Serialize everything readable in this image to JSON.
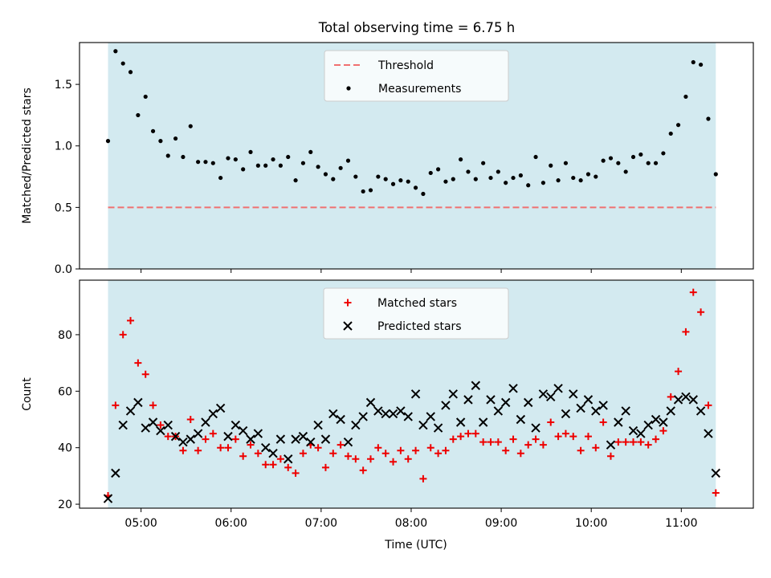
{
  "title": "Total observing time = 6.75 h",
  "colors": {
    "observing_band": "#d3eaf0",
    "threshold": "#f07070",
    "measurements": "#000000",
    "matched": "#ee0000",
    "predicted": "#000000"
  },
  "chart_data": [
    {
      "type": "scatter",
      "ylabel": "Matched/Predicted stars",
      "xlim": [
        "04:19",
        "11:48"
      ],
      "ylim": [
        0,
        1.84
      ],
      "yticks": [
        0.0,
        0.5,
        1.0,
        1.5
      ],
      "ytick_labels": [
        "0.0",
        "0.5",
        "1.0",
        "1.5"
      ],
      "xticks": [
        "05:00",
        "06:00",
        "07:00",
        "08:00",
        "09:00",
        "10:00",
        "11:00"
      ],
      "observing_span": [
        "04:38",
        "11:23"
      ],
      "legend": {
        "placement": "upper-center",
        "entries": [
          "Threshold",
          "Measurements"
        ]
      },
      "threshold": {
        "name": "Threshold",
        "value": 0.5,
        "x": [
          "04:38",
          "11:23"
        ]
      },
      "series": [
        {
          "name": "Measurements",
          "marker": "dot",
          "x": [
            "04:38",
            "04:43",
            "04:48",
            "04:53",
            "04:58",
            "05:03",
            "05:08",
            "05:13",
            "05:18",
            "05:23",
            "05:28",
            "05:33",
            "05:38",
            "05:43",
            "05:48",
            "05:53",
            "05:58",
            "06:03",
            "06:08",
            "06:13",
            "06:18",
            "06:23",
            "06:28",
            "06:33",
            "06:38",
            "06:43",
            "06:48",
            "06:53",
            "06:58",
            "07:03",
            "07:08",
            "07:13",
            "07:18",
            "07:23",
            "07:28",
            "07:33",
            "07:38",
            "07:43",
            "07:48",
            "07:53",
            "07:58",
            "08:03",
            "08:08",
            "08:13",
            "08:18",
            "08:23",
            "08:28",
            "08:33",
            "08:38",
            "08:43",
            "08:48",
            "08:53",
            "08:58",
            "09:03",
            "09:08",
            "09:13",
            "09:18",
            "09:23",
            "09:28",
            "09:33",
            "09:38",
            "09:43",
            "09:48",
            "09:53",
            "09:58",
            "10:03",
            "10:08",
            "10:13",
            "10:18",
            "10:23",
            "10:28",
            "10:33",
            "10:38",
            "10:43",
            "10:48",
            "10:53",
            "10:58",
            "11:03",
            "11:08",
            "11:13",
            "11:18",
            "11:23"
          ],
          "y": [
            1.04,
            1.77,
            1.67,
            1.6,
            1.25,
            1.4,
            1.12,
            1.04,
            0.92,
            1.06,
            0.91,
            1.16,
            0.87,
            0.87,
            0.86,
            0.74,
            0.9,
            0.89,
            0.81,
            0.95,
            0.84,
            0.84,
            0.89,
            0.84,
            0.91,
            0.72,
            0.86,
            0.95,
            0.83,
            0.77,
            0.73,
            0.82,
            0.88,
            0.75,
            0.63,
            0.64,
            0.75,
            0.73,
            0.69,
            0.72,
            0.71,
            0.66,
            0.61,
            0.78,
            0.81,
            0.71,
            0.73,
            0.89,
            0.79,
            0.73,
            0.86,
            0.74,
            0.79,
            0.7,
            0.74,
            0.76,
            0.68,
            0.91,
            0.7,
            0.84,
            0.72,
            0.86,
            0.74,
            0.72,
            0.77,
            0.75,
            0.88,
            0.9,
            0.86,
            0.79,
            0.91,
            0.93,
            0.86,
            0.86,
            0.94,
            1.1,
            1.17,
            1.4,
            1.68,
            1.66,
            1.22,
            0.77
          ]
        }
      ]
    },
    {
      "type": "scatter",
      "xlabel": "Time (UTC)",
      "ylabel": "Count",
      "xlim": [
        "04:19",
        "11:48"
      ],
      "ylim": [
        18.6,
        99.3
      ],
      "yticks": [
        20,
        40,
        60,
        80
      ],
      "ytick_labels": [
        "20",
        "40",
        "60",
        "80"
      ],
      "xticks": [
        "05:00",
        "06:00",
        "07:00",
        "08:00",
        "09:00",
        "10:00",
        "11:00"
      ],
      "observing_span": [
        "04:38",
        "11:23"
      ],
      "legend": {
        "placement": "upper-center",
        "entries": [
          "Matched stars",
          "Predicted stars"
        ]
      },
      "series": [
        {
          "name": "Matched stars",
          "marker": "plus",
          "x": [
            "04:38",
            "04:43",
            "04:48",
            "04:53",
            "04:58",
            "05:03",
            "05:08",
            "05:13",
            "05:18",
            "05:23",
            "05:28",
            "05:33",
            "05:38",
            "05:43",
            "05:48",
            "05:53",
            "05:58",
            "06:03",
            "06:08",
            "06:13",
            "06:18",
            "06:23",
            "06:28",
            "06:33",
            "06:38",
            "06:43",
            "06:48",
            "06:53",
            "06:58",
            "07:03",
            "07:08",
            "07:13",
            "07:18",
            "07:23",
            "07:28",
            "07:33",
            "07:38",
            "07:43",
            "07:48",
            "07:53",
            "07:58",
            "08:03",
            "08:08",
            "08:13",
            "08:18",
            "08:23",
            "08:28",
            "08:33",
            "08:38",
            "08:43",
            "08:48",
            "08:53",
            "08:58",
            "09:03",
            "09:08",
            "09:13",
            "09:18",
            "09:23",
            "09:28",
            "09:33",
            "09:38",
            "09:43",
            "09:48",
            "09:53",
            "09:58",
            "10:03",
            "10:08",
            "10:13",
            "10:18",
            "10:23",
            "10:28",
            "10:33",
            "10:38",
            "10:43",
            "10:48",
            "10:53",
            "10:58",
            "11:03",
            "11:08",
            "11:13",
            "11:18",
            "11:23"
          ],
          "y": [
            23,
            55,
            80,
            85,
            70,
            66,
            55,
            48,
            44,
            44,
            39,
            50,
            39,
            43,
            45,
            40,
            40,
            43,
            37,
            41,
            38,
            34,
            34,
            36,
            33,
            31,
            38,
            41,
            40,
            33,
            38,
            41,
            37,
            36,
            32,
            36,
            40,
            38,
            35,
            39,
            36,
            39,
            29,
            40,
            38,
            39,
            43,
            44,
            45,
            45,
            42,
            42,
            42,
            39,
            43,
            38,
            41,
            43,
            41,
            49,
            44,
            45,
            44,
            39,
            44,
            40,
            49,
            37,
            42,
            42,
            42,
            42,
            41,
            43,
            46,
            58,
            67,
            81,
            95,
            88,
            55,
            24
          ]
        },
        {
          "name": "Predicted stars",
          "marker": "x",
          "x": [
            "04:38",
            "04:43",
            "04:48",
            "04:53",
            "04:58",
            "05:03",
            "05:08",
            "05:13",
            "05:18",
            "05:23",
            "05:28",
            "05:33",
            "05:38",
            "05:43",
            "05:48",
            "05:53",
            "05:58",
            "06:03",
            "06:08",
            "06:13",
            "06:18",
            "06:23",
            "06:28",
            "06:33",
            "06:38",
            "06:43",
            "06:48",
            "06:53",
            "06:58",
            "07:03",
            "07:08",
            "07:13",
            "07:18",
            "07:23",
            "07:28",
            "07:33",
            "07:38",
            "07:43",
            "07:48",
            "07:53",
            "07:58",
            "08:03",
            "08:08",
            "08:13",
            "08:18",
            "08:23",
            "08:28",
            "08:33",
            "08:38",
            "08:43",
            "08:48",
            "08:53",
            "08:58",
            "09:03",
            "09:08",
            "09:13",
            "09:18",
            "09:23",
            "09:28",
            "09:33",
            "09:38",
            "09:43",
            "09:48",
            "09:53",
            "09:58",
            "10:03",
            "10:08",
            "10:13",
            "10:18",
            "10:23",
            "10:28",
            "10:33",
            "10:38",
            "10:43",
            "10:48",
            "10:53",
            "10:58",
            "11:03",
            "11:08",
            "11:13",
            "11:18",
            "11:23"
          ],
          "y": [
            22,
            31,
            48,
            53,
            56,
            47,
            49,
            46,
            48,
            44,
            42,
            43,
            45,
            49,
            52,
            54,
            44,
            48,
            46,
            43,
            45,
            40,
            38,
            43,
            36,
            43,
            44,
            42,
            48,
            43,
            52,
            50,
            42,
            48,
            51,
            56,
            53,
            52,
            52,
            53,
            51,
            59,
            48,
            51,
            47,
            55,
            59,
            49,
            57,
            62,
            49,
            57,
            53,
            56,
            61,
            50,
            56,
            47,
            59,
            58,
            61,
            52,
            59,
            54,
            57,
            53,
            55,
            41,
            49,
            53,
            46,
            45,
            48,
            50,
            49,
            53,
            57,
            58,
            57,
            53,
            45,
            31
          ]
        }
      ]
    }
  ]
}
